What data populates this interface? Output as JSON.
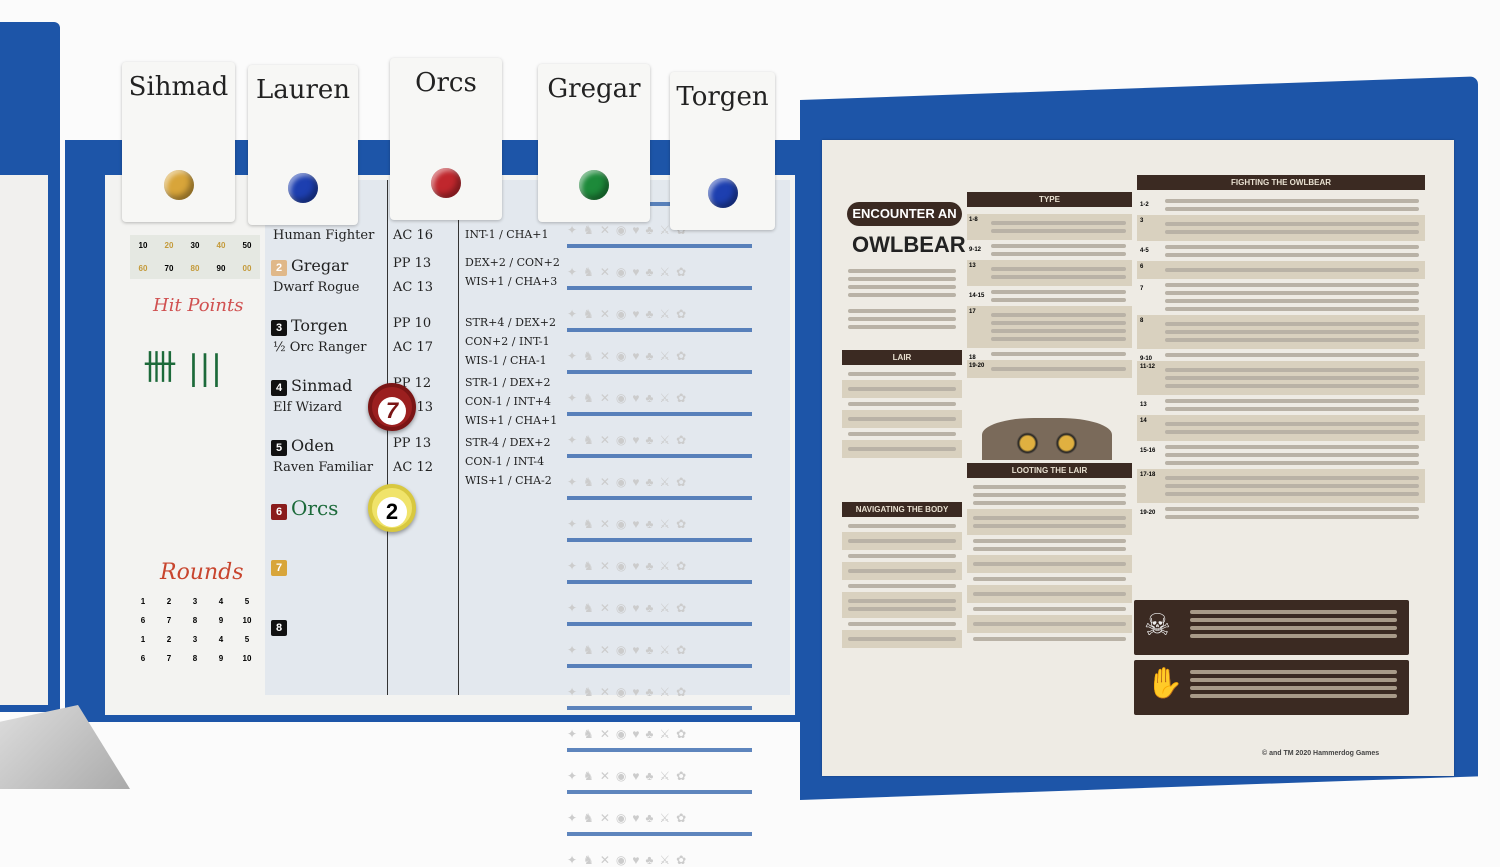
{
  "name_tags": [
    {
      "label": "Sihmad",
      "pin_color": "#d8a53a"
    },
    {
      "label": "Lauren",
      "pin_color": "#1d3fb0"
    },
    {
      "label": "Orcs",
      "pin_color": "#c0272d"
    },
    {
      "label": "Gregar",
      "pin_color": "#1d8a3a"
    },
    {
      "label": "Torgen",
      "pin_color": "#1d3fb0"
    }
  ],
  "left_board": {
    "hp_rows": [
      [
        "10",
        "20",
        "30",
        "40",
        "50"
      ],
      [
        "60",
        "70",
        "80",
        "90",
        "00"
      ]
    ],
    "hit_points_label": "Hit Points",
    "tally": "卌 |||",
    "rounds_label": "Rounds",
    "round_rows": [
      [
        "1",
        "2",
        "3",
        "4",
        "5"
      ],
      [
        "6",
        "7",
        "8",
        "9",
        "10"
      ],
      [
        "1",
        "2",
        "3",
        "4",
        "5"
      ],
      [
        "6",
        "7",
        "8",
        "9",
        "10"
      ]
    ]
  },
  "initiative": [
    {
      "num": "",
      "name": "",
      "class": "Human Fighter",
      "pp": "",
      "ac": "AC 16",
      "stats": [
        "INT-1 / CHA+1"
      ]
    },
    {
      "num": "2",
      "name": "Gregar",
      "class": "Dwarf Rogue",
      "pp": "PP 13",
      "ac": "AC 13",
      "stats": [
        "DEX+2 / CON+2",
        "WIS+1 / CHA+3"
      ]
    },
    {
      "num": "3",
      "name": "Torgen",
      "class": "½ Orc Ranger",
      "pp": "PP 10",
      "ac": "AC 17",
      "stats": [
        "STR+4 / DEX+2",
        "CON+2 / INT-1",
        "WIS-1 / CHA-1"
      ]
    },
    {
      "num": "4",
      "name": "Sinmad",
      "class": "Elf Wizard",
      "pp": "PP 12",
      "ac": "AC 13",
      "stats": [
        "STR-1 / DEX+2",
        "CON-1 / INT+4",
        "WIS+1 / CHA+1"
      ]
    },
    {
      "num": "5",
      "name": "Oden",
      "class": "Raven Familiar",
      "pp": "PP 13",
      "ac": "AC 12",
      "stats": [
        "STR-4 / DEX+2",
        "CON-1 / INT-4",
        "WIS+1 / CHA-2"
      ]
    },
    {
      "num": "6",
      "name": "Orcs",
      "class": "",
      "pp": "",
      "ac": "",
      "stats": []
    },
    {
      "num": "7",
      "name": "",
      "class": "",
      "pp": "",
      "ac": "",
      "stats": []
    },
    {
      "num": "8",
      "name": "",
      "class": "",
      "pp": "",
      "ac": "",
      "stats": []
    }
  ],
  "tokens": [
    {
      "label": "7",
      "color": "#9b1f1f"
    },
    {
      "label": "2",
      "color": "#f0e36a"
    }
  ],
  "owlbear_card": {
    "title_top": "ENCOUNTER AN",
    "title": "OWLBEAR",
    "type_header": "TYPE",
    "fighting_header": "FIGHTING THE OWLBEAR",
    "lair_header": "LAIR",
    "looting_header": "LOOTING THE LAIR",
    "navigating_header": "NAVIGATING THE BODY",
    "fighting_rolls": [
      "1-2",
      "3",
      "4-5",
      "6",
      "7",
      "8",
      "9-10",
      "11-12",
      "13",
      "14",
      "15-16",
      "17-18",
      "19-20"
    ],
    "type_rolls": [
      "1-8",
      "9-12",
      "13",
      "14-15",
      "17",
      "18",
      "19-20"
    ],
    "copyright": "© and TM 2020 Hammerdog Games"
  }
}
